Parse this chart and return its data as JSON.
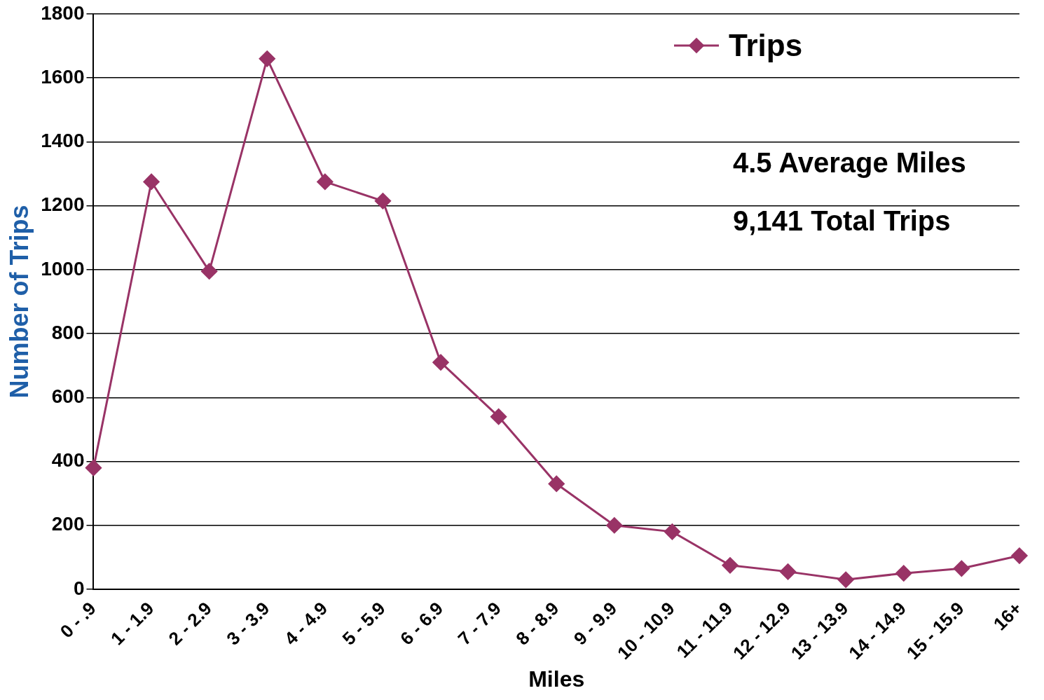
{
  "chart_data": {
    "type": "line",
    "xlabel": "Miles",
    "ylabel": "Number of Trips",
    "categories": [
      "0 - .9",
      "1 - 1.9",
      "2 - 2.9",
      "3 - 3.9",
      "4 - 4.9",
      "5 - 5.9",
      "6 - 6.9",
      "7 - 7.9",
      "8 - 8.9",
      "9 - 9.9",
      "10 - 10.9",
      "11 - 11.9",
      "12 - 12.9",
      "13 - 13.9",
      "14 - 14.9",
      "15 - 15.9",
      "16+"
    ],
    "series": [
      {
        "name": "Trips",
        "color": "#993366",
        "values": [
          380,
          1275,
          995,
          1660,
          1275,
          1215,
          710,
          540,
          330,
          200,
          180,
          75,
          55,
          30,
          50,
          65,
          105
        ]
      }
    ],
    "ylim": [
      0,
      1800
    ],
    "yticks": [
      0,
      200,
      400,
      600,
      800,
      1000,
      1200,
      1400,
      1600,
      1800
    ],
    "grid": "y",
    "legend": "top right",
    "marker": "diamond",
    "line_style": "solid",
    "annotations": [
      "4.5 Average Miles",
      "9,141 Total Trips"
    ]
  }
}
